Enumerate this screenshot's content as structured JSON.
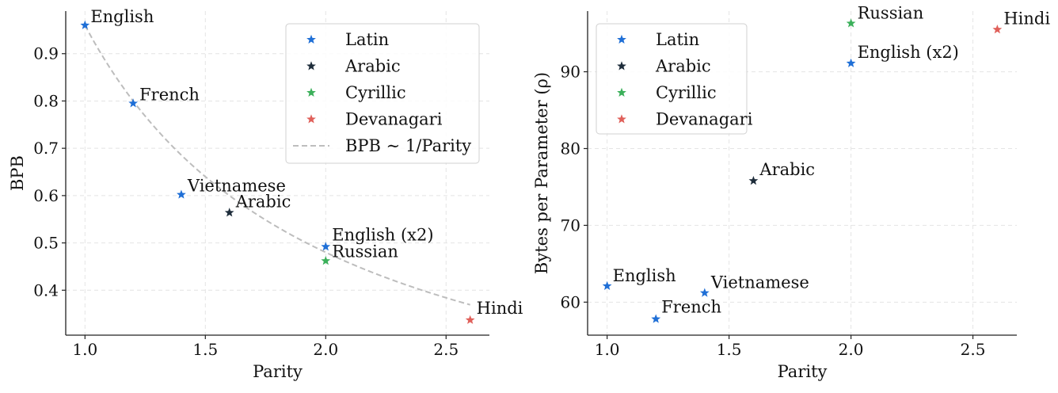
{
  "colors": {
    "Latin": "#1f6fd6",
    "Arabic": "#1e2d3b",
    "Cyrillic": "#3bb05a",
    "Devanagari": "#e0605a",
    "fit": "#bdbdbd"
  },
  "chart_data": [
    {
      "type": "scatter",
      "xlabel": "Parity",
      "ylabel": "BPB",
      "xlim": [
        0.92,
        2.68
      ],
      "ylim": [
        0.305,
        0.99
      ],
      "xticks": [
        1.0,
        1.5,
        2.0,
        2.5
      ],
      "yticks": [
        0.4,
        0.5,
        0.6,
        0.7,
        0.8,
        0.9
      ],
      "xtick_labels": [
        "1.0",
        "1.5",
        "2.0",
        "2.5"
      ],
      "ytick_labels": [
        "0.4",
        "0.5",
        "0.6",
        "0.7",
        "0.8",
        "0.9"
      ],
      "grid": true,
      "legend": {
        "placement": "top-right",
        "entries": [
          "Latin",
          "Arabic",
          "Cyrillic",
          "Devanagari"
        ],
        "fit_label": "BPB ∼ 1/Parity"
      },
      "fit": {
        "label": "BPB ∼ 1/Parity",
        "form": "0.96/x",
        "x_from": 1.0,
        "x_to": 2.6
      },
      "points": [
        {
          "label": "English",
          "script": "Latin",
          "x": 1.0,
          "y": 0.96
        },
        {
          "label": "French",
          "script": "Latin",
          "x": 1.2,
          "y": 0.795
        },
        {
          "label": "Vietnamese",
          "script": "Latin",
          "x": 1.4,
          "y": 0.602
        },
        {
          "label": "Arabic",
          "script": "Arabic",
          "x": 1.6,
          "y": 0.564
        },
        {
          "label": "English (x2)",
          "script": "Latin",
          "x": 2.0,
          "y": 0.492
        },
        {
          "label": "Russian",
          "script": "Cyrillic",
          "x": 2.0,
          "y": 0.462
        },
        {
          "label": "Hindi",
          "script": "Devanagari",
          "x": 2.6,
          "y": 0.337
        }
      ]
    },
    {
      "type": "scatter",
      "xlabel": "Parity",
      "ylabel": "Bytes per Parameter (ρ)",
      "xlim": [
        0.92,
        2.68
      ],
      "ylim": [
        55.7,
        97.9
      ],
      "xticks": [
        1.0,
        1.5,
        2.0,
        2.5
      ],
      "yticks": [
        60,
        70,
        80,
        90
      ],
      "xtick_labels": [
        "1.0",
        "1.5",
        "2.0",
        "2.5"
      ],
      "ytick_labels": [
        "60",
        "70",
        "80",
        "90"
      ],
      "grid": true,
      "legend": {
        "placement": "top-left",
        "entries": [
          "Latin",
          "Arabic",
          "Cyrillic",
          "Devanagari"
        ]
      },
      "points": [
        {
          "label": "English",
          "script": "Latin",
          "x": 1.0,
          "y": 62.1
        },
        {
          "label": "French",
          "script": "Latin",
          "x": 1.2,
          "y": 57.8
        },
        {
          "label": "Vietnamese",
          "script": "Latin",
          "x": 1.4,
          "y": 61.2
        },
        {
          "label": "Arabic",
          "script": "Arabic",
          "x": 1.6,
          "y": 75.8
        },
        {
          "label": "English (x2)",
          "script": "Latin",
          "x": 2.0,
          "y": 91.1
        },
        {
          "label": "Russian",
          "script": "Cyrillic",
          "x": 2.0,
          "y": 96.3
        },
        {
          "label": "Hindi",
          "script": "Devanagari",
          "x": 2.6,
          "y": 95.5
        }
      ]
    }
  ]
}
